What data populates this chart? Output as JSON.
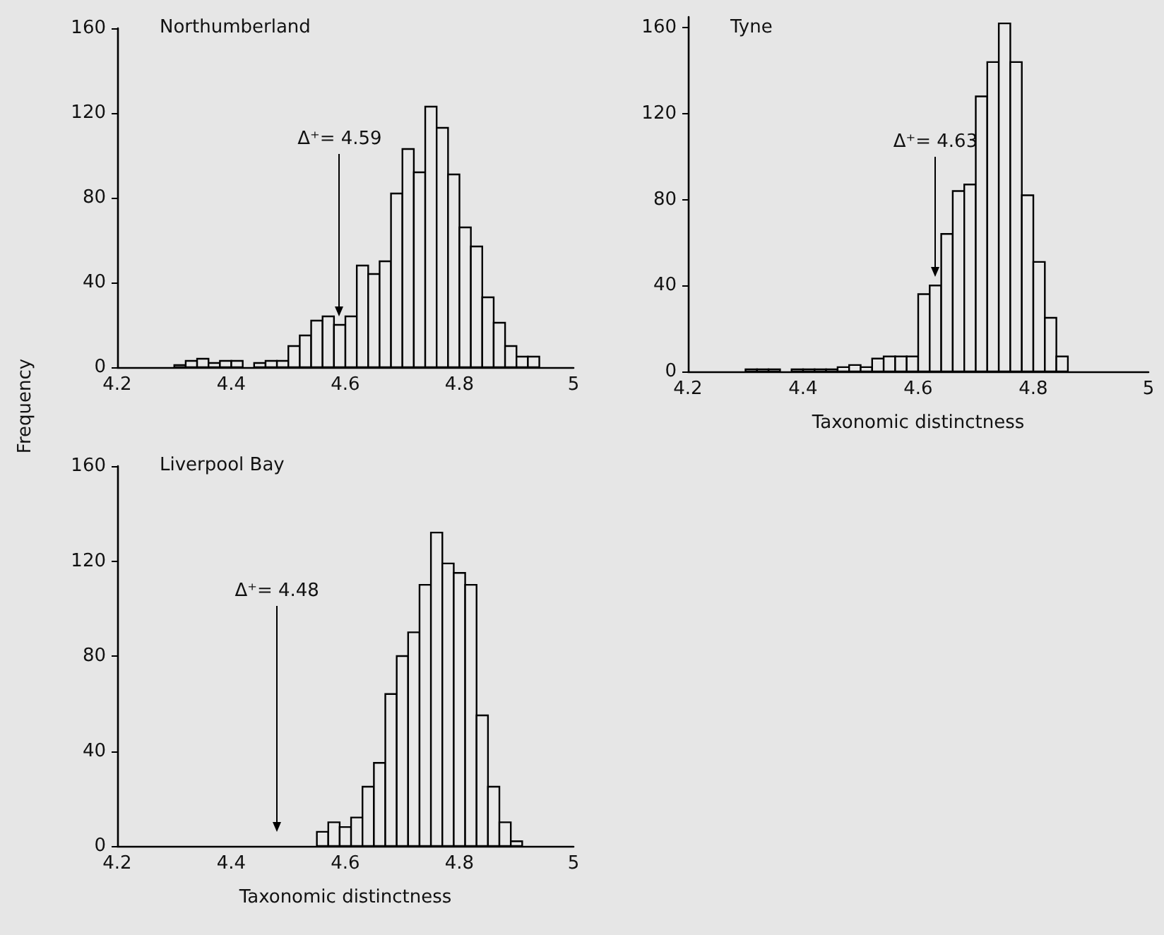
{
  "chart_data": [
    {
      "type": "histogram",
      "title": "Northumberland",
      "ylabel": "Frequency",
      "color": "#e8e8e8",
      "bins": [
        4.3,
        4.32,
        4.34,
        4.36,
        4.38,
        4.4,
        4.42,
        4.44,
        4.46,
        4.48,
        4.5,
        4.52,
        4.54,
        4.56,
        4.58,
        4.6,
        4.62,
        4.64,
        4.66,
        4.68,
        4.7,
        4.72,
        4.74,
        4.76,
        4.78,
        4.8,
        4.82,
        4.84,
        4.86,
        4.88,
        4.9,
        4.92,
        4.94
      ],
      "values": [
        1,
        3,
        4,
        2,
        3,
        3,
        0,
        2,
        3,
        3,
        10,
        15,
        22,
        24,
        20,
        24,
        48,
        44,
        50,
        82,
        103,
        92,
        123,
        113,
        91,
        66,
        57,
        33,
        21,
        10,
        5,
        5
      ],
      "xlim": [
        4.2,
        5
      ],
      "xticks": [
        4.2,
        4.4,
        4.6,
        4.8,
        5
      ],
      "ylim": [
        0,
        160
      ],
      "yticks": [
        0,
        40,
        80,
        120,
        160
      ],
      "ref_lines": [
        {
          "axis": "x",
          "value": 4.59,
          "label": "Δ⁺= 4.59"
        }
      ]
    },
    {
      "type": "histogram",
      "title": "Tyne",
      "xlabel": "Taxonomic distinctness",
      "color": "#e8e8e8",
      "bins": [
        4.3,
        4.32,
        4.34,
        4.36,
        4.38,
        4.4,
        4.42,
        4.44,
        4.46,
        4.48,
        4.5,
        4.52,
        4.54,
        4.56,
        4.58,
        4.6,
        4.62,
        4.64,
        4.66,
        4.68,
        4.7,
        4.72,
        4.74,
        4.76,
        4.78,
        4.8,
        4.82,
        4.84,
        4.86
      ],
      "values": [
        1,
        1,
        1,
        0,
        1,
        1,
        1,
        1,
        2,
        3,
        2,
        6,
        7,
        7,
        7,
        36,
        40,
        64,
        84,
        87,
        128,
        144,
        162,
        144,
        82,
        51,
        25,
        7
      ],
      "xlim": [
        4.2,
        5
      ],
      "xticks": [
        4.2,
        4.4,
        4.6,
        4.8,
        5
      ],
      "ylim": [
        0,
        165
      ],
      "yticks": [
        0,
        40,
        80,
        120,
        160
      ],
      "ref_lines": [
        {
          "axis": "x",
          "value": 4.63,
          "label": "Δ⁺= 4.63"
        }
      ]
    },
    {
      "type": "histogram",
      "title": "Liverpool Bay",
      "xlabel": "Taxonomic distinctness",
      "color": "#e8e8e8",
      "bins": [
        4.55,
        4.57,
        4.59,
        4.61,
        4.63,
        4.65,
        4.67,
        4.69,
        4.71,
        4.73,
        4.75,
        4.77,
        4.79,
        4.81,
        4.83,
        4.85,
        4.87,
        4.89,
        4.91
      ],
      "values": [
        6,
        10,
        8,
        12,
        25,
        35,
        64,
        80,
        90,
        110,
        132,
        119,
        115,
        110,
        55,
        25,
        10,
        2
      ],
      "xlim": [
        4.2,
        5
      ],
      "xticks": [
        4.2,
        4.4,
        4.6,
        4.8,
        5
      ],
      "ylim": [
        0,
        160
      ],
      "yticks": [
        0,
        40,
        80,
        120,
        160
      ],
      "ref_lines": [
        {
          "axis": "x",
          "value": 4.48,
          "label": "Δ⁺= 4.48"
        }
      ]
    }
  ]
}
